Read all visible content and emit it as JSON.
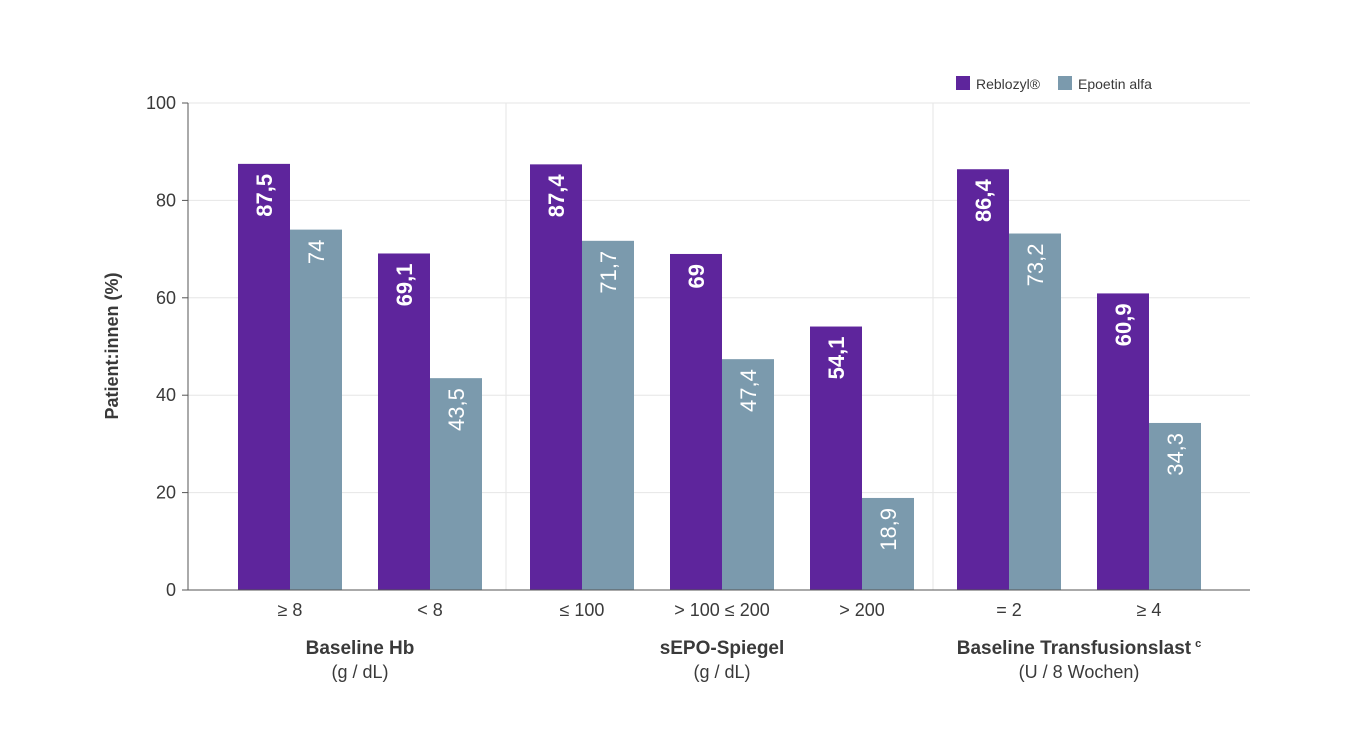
{
  "chart_data": {
    "type": "bar",
    "ylabel": "Patient:innen (%)",
    "ylim": [
      0,
      100
    ],
    "yticks": [
      0,
      20,
      40,
      60,
      80,
      100
    ],
    "grid": true,
    "legend_position": "top-right",
    "colors": {
      "Reblozyl": "#5e259c",
      "Epoetin alfa": "#7b9aad",
      "grid": "#e6e6e6",
      "axis": "#555555"
    },
    "series": [
      {
        "name": "Reblozyl®",
        "values": [
          87.5,
          69.1,
          87.4,
          69,
          54.1,
          86.4,
          60.9
        ],
        "labels": [
          "87,5",
          "69,1",
          "87,4",
          "69",
          "54,1",
          "86,4",
          "60,9"
        ]
      },
      {
        "name": "Epoetin alfa",
        "values": [
          74,
          43.5,
          71.7,
          47.4,
          18.9,
          73.2,
          34.3
        ],
        "labels": [
          "74",
          "43,5",
          "71,7",
          "47,4",
          "18,9",
          "73,2",
          "34,3"
        ]
      }
    ],
    "categories": [
      "≥ 8",
      "< 8",
      "≤ 100",
      "> 100 ≤ 200",
      "> 200",
      "= 2",
      "≥ 4"
    ],
    "groups": [
      {
        "title": "Baseline Hb",
        "sup": "",
        "subtitle": "(g / dL)",
        "category_indices": [
          0,
          1
        ]
      },
      {
        "title": "sEPO-Spiegel",
        "sup": "",
        "subtitle": "(g / dL)",
        "category_indices": [
          2,
          3,
          4
        ]
      },
      {
        "title": "Baseline Transfusionslast",
        "sup": "c",
        "subtitle": "(U / 8 Wochen)",
        "category_indices": [
          5,
          6
        ]
      }
    ]
  }
}
